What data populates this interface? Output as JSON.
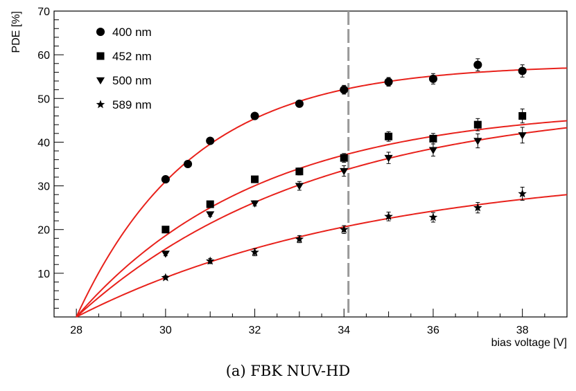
{
  "chart_data": {
    "type": "scatter",
    "xlabel": "bias voltage [V]",
    "ylabel": "PDE [%]",
    "xlim": [
      27.5,
      39
    ],
    "ylim": [
      0,
      70
    ],
    "x_ticks": [
      28,
      30,
      32,
      34,
      36,
      38
    ],
    "y_ticks": [
      10,
      20,
      30,
      40,
      50,
      60,
      70
    ],
    "grid": false,
    "legend_position": "top-left",
    "fit_color": "#e8211b",
    "vline": {
      "x": 34.1,
      "style": "dashed",
      "color": "#999999"
    },
    "series": [
      {
        "name": "400 nm",
        "marker": "circle",
        "x": [
          30,
          30.5,
          31,
          32,
          33,
          34,
          35,
          36,
          37,
          38
        ],
        "y": [
          31.5,
          35,
          40.3,
          46,
          48.8,
          52,
          53.8,
          54.5,
          57.7,
          56.3
        ],
        "err": [
          0.5,
          0.5,
          0.5,
          0.6,
          0.7,
          1,
          1,
          1.2,
          1.4,
          1.4
        ],
        "fit": {
          "A": 57.8,
          "x0": 28,
          "tau": 2.6
        }
      },
      {
        "name": "452 nm",
        "marker": "square",
        "x": [
          30,
          31,
          32,
          33,
          34,
          35,
          36,
          37,
          38
        ],
        "y": [
          20,
          25.8,
          31.5,
          33.3,
          36.4,
          41.3,
          40.8,
          44,
          46
        ],
        "err": [
          0.5,
          0.5,
          0.6,
          0.8,
          1,
          1.1,
          1.2,
          1.4,
          1.6
        ],
        "fit": {
          "A": 48.2,
          "x0": 28,
          "tau": 4.1
        }
      },
      {
        "name": "500 nm",
        "marker": "triangle-down",
        "x": [
          30,
          31,
          32,
          33,
          34,
          35,
          36,
          37,
          38
        ],
        "y": [
          14.5,
          23.5,
          26,
          30,
          33.4,
          36.4,
          38.2,
          40.3,
          41.6
        ],
        "err": [
          0.5,
          0.5,
          0.6,
          1,
          1.2,
          1.3,
          1.4,
          1.6,
          1.8
        ],
        "fit": {
          "A": 49.5,
          "x0": 28,
          "tau": 5.3
        }
      },
      {
        "name": "589 nm",
        "marker": "star",
        "x": [
          30,
          31,
          32,
          33,
          34,
          35,
          36,
          37,
          38
        ],
        "y": [
          9,
          12.8,
          14.8,
          17.8,
          20,
          23,
          22.8,
          25,
          28.2
        ],
        "err": [
          0.4,
          0.6,
          0.8,
          0.8,
          0.9,
          1,
          1.1,
          1.2,
          1.5
        ],
        "fit": {
          "A": 34.5,
          "x0": 28,
          "tau": 6.6
        }
      }
    ]
  },
  "caption": "(a) FBK NUV-HD"
}
